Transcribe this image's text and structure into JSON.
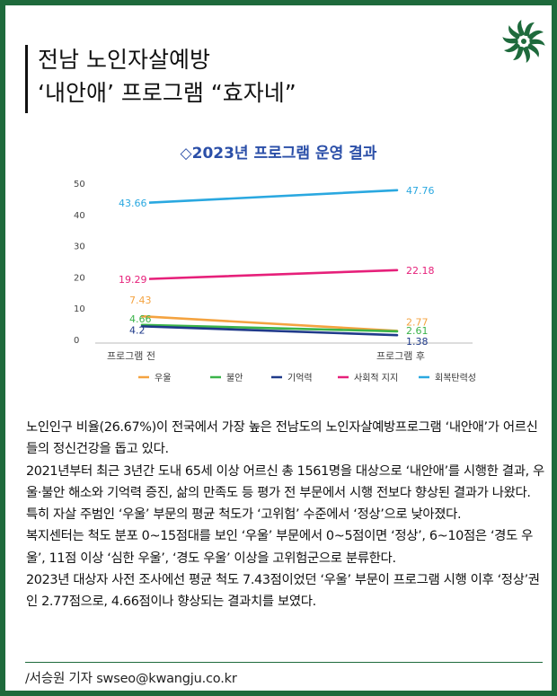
{
  "header": {
    "title_line1": "전남 노인자살예방",
    "title_line2": "‘내안애’ 프로그램 “효자네”"
  },
  "colors": {
    "frame": "#1e6a3c",
    "우울": "#f4a340",
    "불안": "#3bb44a",
    "기억력": "#1f3a8a",
    "사회적 지지": "#e6207a",
    "회복탄력성": "#2aa8e0"
  },
  "chart_data": {
    "type": "line",
    "title": "◇2023년 프로그램 운영 결과",
    "categories": [
      "프로그램 전",
      "프로그램 후"
    ],
    "ylim": [
      0,
      50
    ],
    "yticks": [
      "0",
      "10",
      "20",
      "30",
      "40",
      "50"
    ],
    "legend_position": "bottom",
    "grid": false,
    "series": [
      {
        "name": "우울",
        "values": [
          7.43,
          2.77
        ],
        "labels": [
          "7.43",
          "2.77"
        ],
        "color": "#f4a340"
      },
      {
        "name": "불안",
        "values": [
          4.66,
          2.61
        ],
        "labels": [
          "4.66",
          "2.61"
        ],
        "color": "#3bb44a"
      },
      {
        "name": "기억력",
        "values": [
          4.2,
          1.38
        ],
        "labels": [
          "4.2",
          "1.38"
        ],
        "color": "#1f3a8a"
      },
      {
        "name": "사회적 지지",
        "values": [
          19.29,
          22.18
        ],
        "labels": [
          "19.29",
          "22.18"
        ],
        "color": "#e6207a"
      },
      {
        "name": "회복탄력성",
        "values": [
          43.66,
          47.76
        ],
        "labels": [
          "43.66",
          "47.76"
        ],
        "color": "#2aa8e0"
      }
    ]
  },
  "article": {
    "paragraphs": [
      "노인인구 비율(26.67%)이 전국에서 가장 높은 전남도의 노인자살예방프로그램 ‘내안애’가 어르신들의 정신건강을 돕고 있다.",
      "2021년부터 최근 3년간 도내 65세 이상 어르신 총 1561명을 대상으로 ‘내안애’를 시행한 결과, 우울·불안 해소와 기억력 증진, 삶의 만족도 등 평가 전 부문에서 시행 전보다 향상된 결과가 나왔다.",
      "특히 자살 주범인 ‘우울’ 부문의 평균 척도가 ‘고위험’ 수준에서 ‘정상’으로 낮아졌다.",
      "복지센터는 척도 분포 0~15점대를 보인 ‘우울’ 부문에서 0~5점이면 ‘정상’, 6~10점은 ‘경도 우울’, 11점 이상 ‘심한 우울’, ‘경도 우울’ 이상을 고위험군으로 분류한다.",
      "2023년 대상자 사전 조사에선 평균 척도 7.43점이었던 ‘우울’ 부문이 프로그램 시행 이후 ‘정상’권인 2.77점으로, 4.66점이나 향상되는 결과치를 보였다."
    ]
  },
  "byline": "/서승원 기자 swseo@kwangju.co.kr",
  "logo_icon": "pinwheel-logo-icon"
}
